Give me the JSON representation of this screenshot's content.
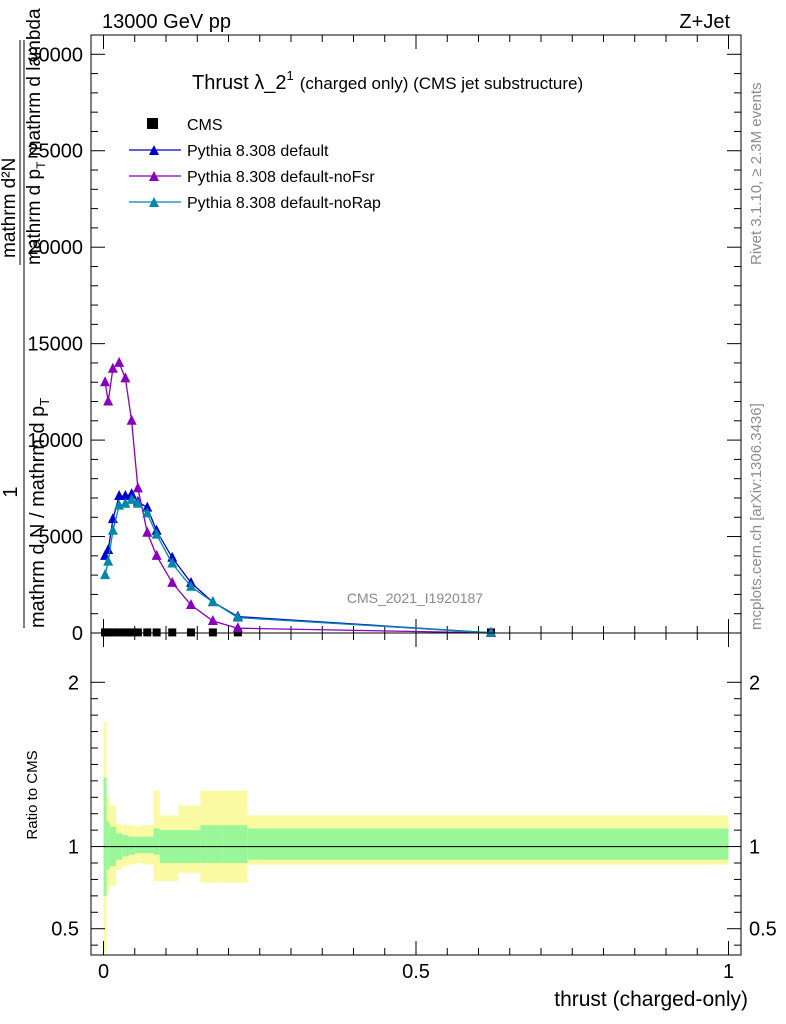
{
  "header": {
    "left": "13000 GeV pp",
    "right": "Z+Jet"
  },
  "side_labels": {
    "rivet": "Rivet 3.1.10, ≥ 2.3M events",
    "mcplots": "mcplots.cern.ch [arXiv:1306.3436]"
  },
  "chart_data": [
    {
      "type": "line",
      "title_main": "Thrust λ_2",
      "title_sup": "1",
      "title_rest": "(charged only) (CMS jet substructure)",
      "watermark": "CMS_2021_I1920187",
      "ylabel_num": "1",
      "ylabel_den": "mathrm d N / mathrm d p",
      "ylabel_den_sub": "T",
      "ylabel_frac_num": "mathrm d²N",
      "ylabel_frac_den": "mathrm d p",
      "ylabel_frac_den_sub": "T",
      "ylabel_frac_den_rest": " mathrm d lambda",
      "xlim": [
        -0.02,
        1.02
      ],
      "ylim": [
        0,
        31000
      ],
      "yticks": [
        0,
        5000,
        10000,
        15000,
        20000,
        25000,
        30000
      ],
      "ytick_labels": [
        "0",
        "5000",
        "10000",
        "15000",
        "20000",
        "25000",
        "30000"
      ],
      "legend_position": "top-left",
      "series": [
        {
          "name": "CMS",
          "marker": "square",
          "color": "#000000",
          "x": [
            0.0025,
            0.0075,
            0.015,
            0.025,
            0.035,
            0.045,
            0.055,
            0.07,
            0.085,
            0.11,
            0.14,
            0.175,
            0.215,
            0.62
          ],
          "y": [
            30,
            30,
            30,
            30,
            30,
            30,
            30,
            30,
            30,
            30,
            30,
            30,
            30,
            30
          ]
        },
        {
          "name": "Pythia 8.308 default",
          "marker": "triangle",
          "color": "#0000cc",
          "x": [
            0.0025,
            0.0075,
            0.015,
            0.025,
            0.035,
            0.045,
            0.055,
            0.07,
            0.085,
            0.11,
            0.14,
            0.175,
            0.215,
            0.62
          ],
          "y": [
            4000,
            4300,
            5900,
            7100,
            7100,
            7200,
            6800,
            6500,
            5300,
            3900,
            2600,
            1600,
            850,
            10
          ]
        },
        {
          "name": "Pythia 8.308 default-noFsr",
          "marker": "triangle",
          "color": "#8800bb",
          "x": [
            0.0025,
            0.0075,
            0.015,
            0.025,
            0.035,
            0.045,
            0.055,
            0.07,
            0.085,
            0.11,
            0.14,
            0.175,
            0.215,
            0.62
          ],
          "y": [
            13000,
            12000,
            13700,
            14000,
            13200,
            11000,
            7500,
            5200,
            4000,
            2600,
            1450,
            620,
            250,
            5
          ]
        },
        {
          "name": "Pythia 8.308 default-noRap",
          "marker": "triangle",
          "color": "#0088aa",
          "x": [
            0.0025,
            0.0075,
            0.015,
            0.025,
            0.035,
            0.045,
            0.055,
            0.07,
            0.085,
            0.11,
            0.14,
            0.175,
            0.215,
            0.62
          ],
          "y": [
            3000,
            3700,
            5300,
            6600,
            6700,
            6900,
            6700,
            6200,
            5100,
            3600,
            2400,
            1600,
            800,
            10
          ]
        }
      ]
    },
    {
      "type": "area",
      "ylabel": "Ratio to CMS",
      "xlabel": "thrust (charged-only)",
      "xlim": [
        -0.02,
        1.02
      ],
      "ylim": [
        0.34,
        2.3
      ],
      "yticks": [
        0.5,
        1,
        2
      ],
      "ytick_labels": [
        "0.5",
        "1",
        "2"
      ],
      "xticks": [
        0,
        0.5,
        1
      ],
      "xtick_labels": [
        "0",
        "0.5",
        "1"
      ],
      "reference": 1.0,
      "bands": {
        "edges": [
          0.0,
          0.005,
          0.01,
          0.02,
          0.03,
          0.04,
          0.05,
          0.06,
          0.08,
          0.09,
          0.12,
          0.155,
          0.19,
          0.23,
          1.0
        ],
        "green_lo": [
          0.7,
          0.86,
          0.88,
          0.92,
          0.94,
          0.95,
          0.96,
          0.96,
          0.95,
          0.9,
          0.9,
          0.9,
          0.9,
          0.92
        ],
        "green_hi": [
          1.42,
          1.15,
          1.12,
          1.08,
          1.07,
          1.06,
          1.06,
          1.06,
          1.11,
          1.1,
          1.1,
          1.13,
          1.13,
          1.11
        ],
        "yellow_lo": [
          0.35,
          0.72,
          0.76,
          0.86,
          0.88,
          0.89,
          0.9,
          0.89,
          0.79,
          0.79,
          0.84,
          0.78,
          0.78,
          0.89
        ],
        "yellow_hi": [
          1.76,
          1.3,
          1.25,
          1.14,
          1.13,
          1.13,
          1.12,
          1.13,
          1.34,
          1.19,
          1.25,
          1.34,
          1.34,
          1.19
        ],
        "green_color": "#99f799",
        "yellow_color": "#fafaa2"
      }
    }
  ]
}
